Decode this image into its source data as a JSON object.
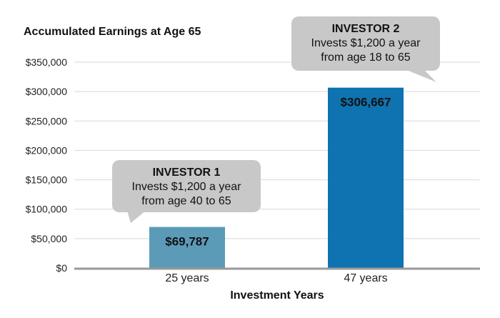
{
  "chart_data": {
    "type": "bar",
    "title": "Accumulated Earnings at Age 65",
    "xlabel": "Investment Years",
    "ylabel": "",
    "categories": [
      "25 years",
      "47 years"
    ],
    "values": [
      69787,
      306667
    ],
    "value_labels": [
      "$69,787",
      "$306,667"
    ],
    "bar_colors": [
      "#5b9bb8",
      "#0e73b0"
    ],
    "value_label_colors": [
      "#111111",
      "#111111"
    ],
    "ylim": [
      0,
      350000
    ],
    "yticks": [
      0,
      50000,
      100000,
      150000,
      200000,
      250000,
      300000,
      350000
    ],
    "ytick_labels": [
      "$0",
      "$50,000",
      "$100,000",
      "$150,000",
      "$200,000",
      "$250,000",
      "$300,000",
      "$350,000"
    ],
    "grid": true,
    "legend": "none",
    "annotations": [
      {
        "target": "25 years",
        "title": "INVESTOR 1",
        "lines": [
          "Invests $1,200 a year",
          "from age 40 to 65"
        ]
      },
      {
        "target": "47 years",
        "title": "INVESTOR 2",
        "lines": [
          "Invests $1,200 a year",
          "from age 18 to 65"
        ]
      }
    ],
    "callout_color": "#c8c8c8",
    "grid_color": "#d9d9d9",
    "axis_color": "#999999"
  }
}
